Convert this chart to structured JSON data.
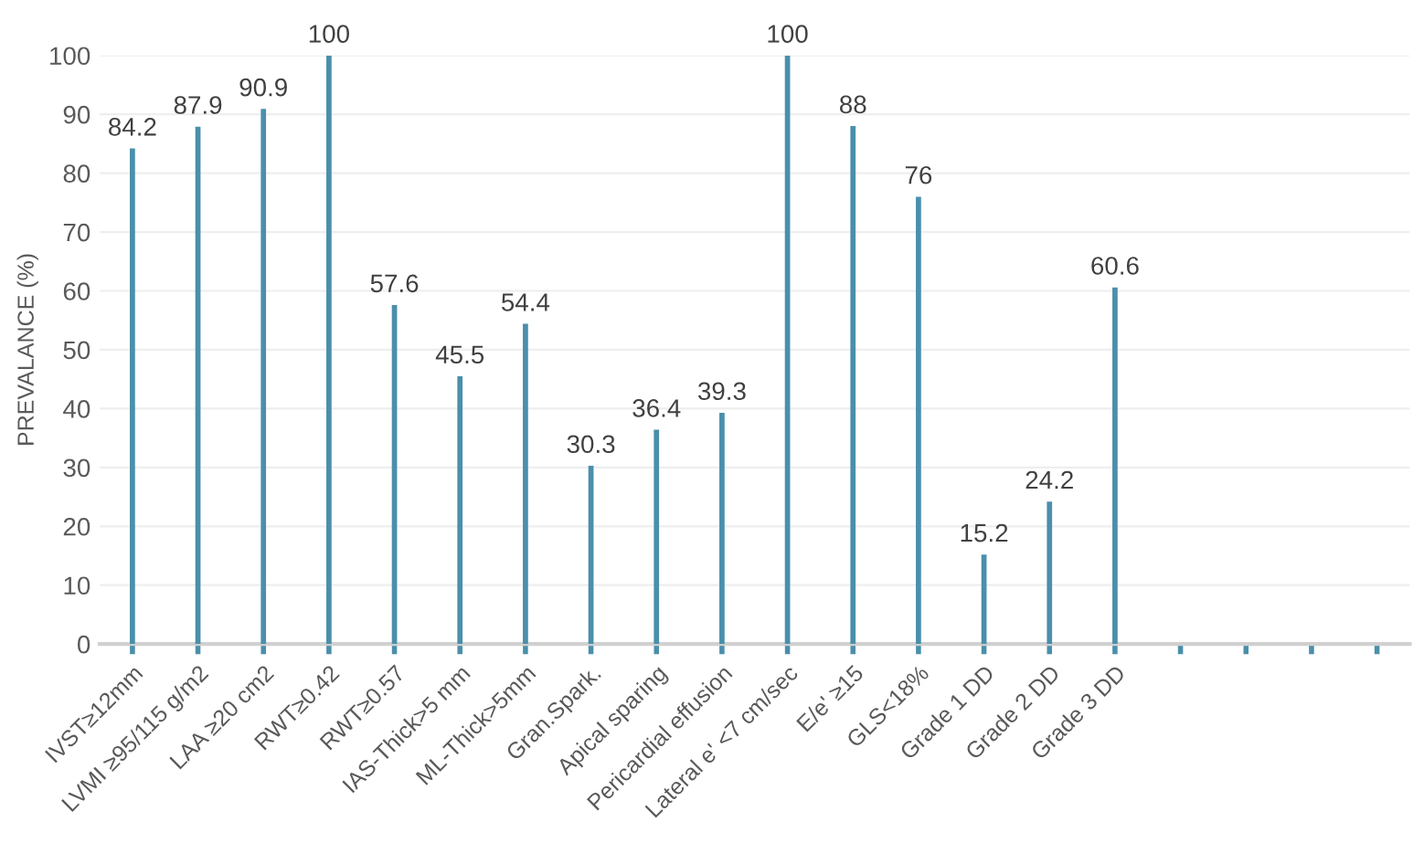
{
  "chart_data": {
    "type": "bar",
    "ylabel": "PREVALANCE (%)",
    "categories": [
      "IVST≥12mm",
      "LVMI ≥95/115 g/m2",
      "LAA ≥20 cm2",
      "RWT≥0.42",
      "RWT≥0.57",
      "IAS-Thick>5 mm",
      "ML-Thick>5mm",
      "Gran.Spark.",
      "Apical sparing",
      "Pericardial effusion",
      "Lateral e' <7 cm/sec",
      "E/e' ≥15",
      "GLS<18%",
      "Grade 1 DD",
      "Grade 2 DD",
      "Grade 3 DD",
      null,
      null,
      null,
      null
    ],
    "values": [
      84.2,
      87.9,
      90.9,
      100,
      57.6,
      45.5,
      54.4,
      30.3,
      36.4,
      39.3,
      100,
      88,
      76,
      15.2,
      24.2,
      60.6,
      null,
      null,
      null,
      null
    ],
    "color": "#4a8fab",
    "data_labels": true,
    "ylim": [
      0,
      100
    ],
    "yticks": [
      0,
      10,
      20,
      30,
      40,
      50,
      60,
      70,
      80,
      90,
      100
    ],
    "grid": "y",
    "legend": false
  }
}
